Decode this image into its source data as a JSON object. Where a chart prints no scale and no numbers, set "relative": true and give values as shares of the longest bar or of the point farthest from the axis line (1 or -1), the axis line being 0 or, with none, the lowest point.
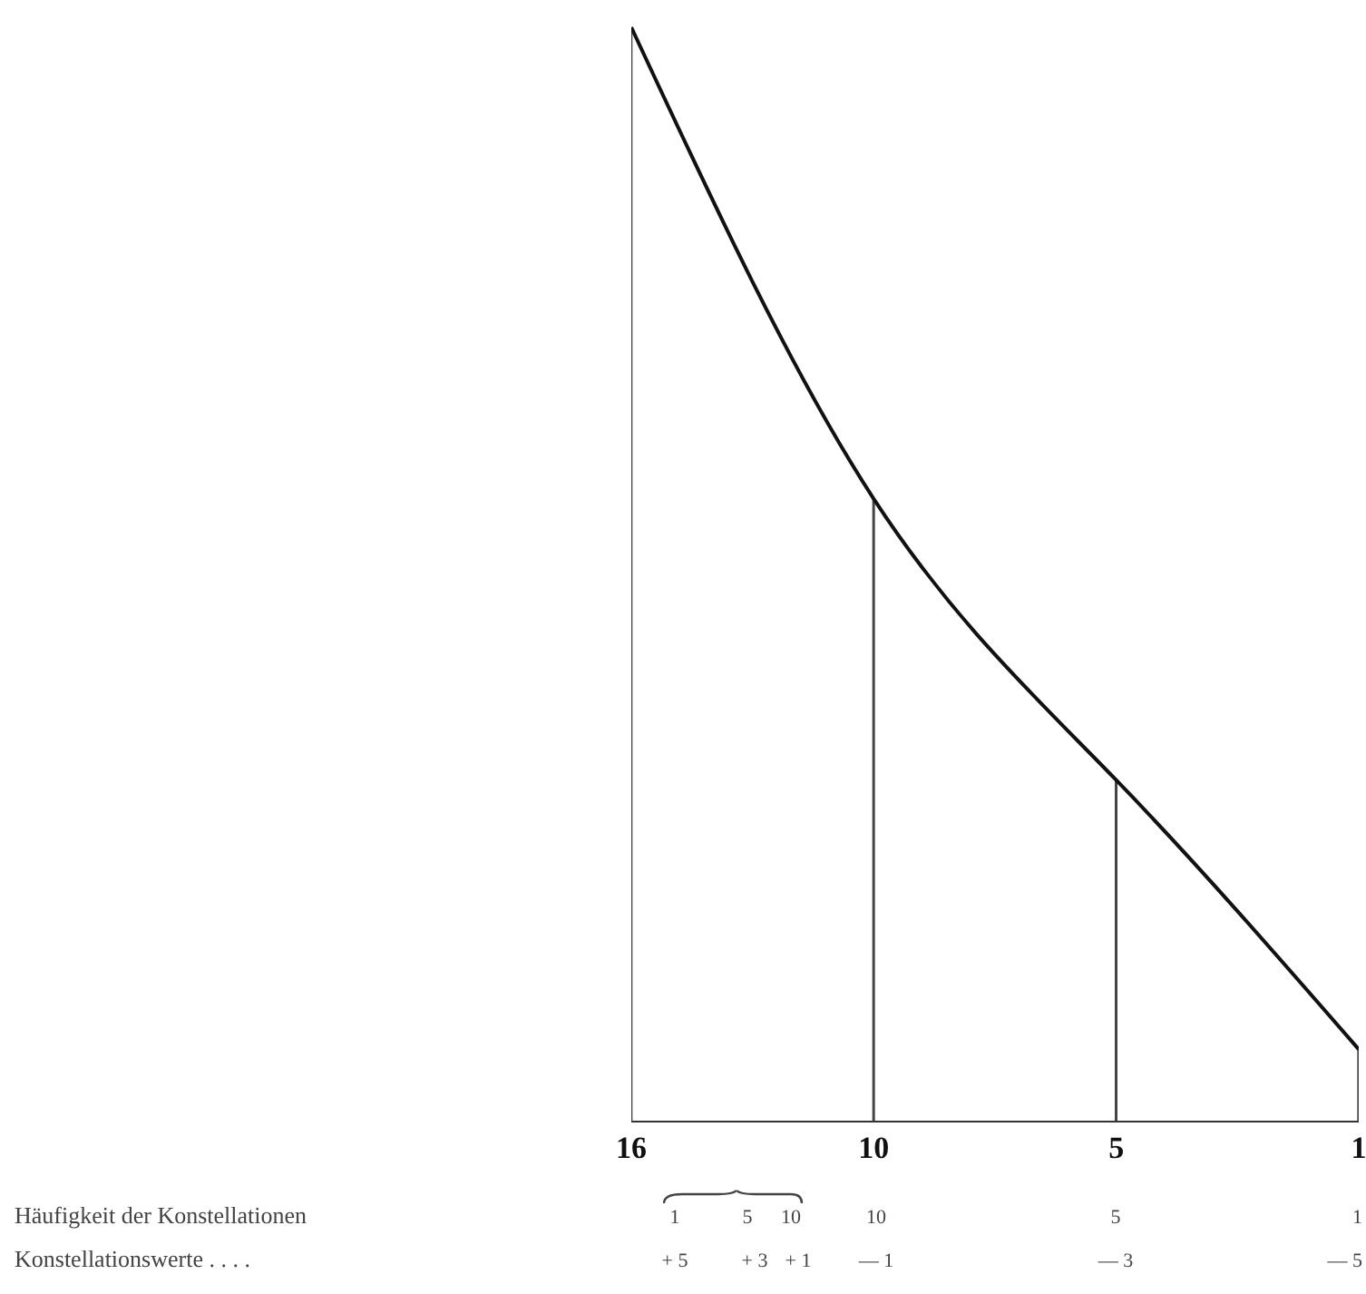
{
  "chart_data": {
    "type": "line",
    "relative": true,
    "categories": [
      "16",
      "10",
      "5",
      "1"
    ],
    "series": [
      {
        "color": "#111111",
        "values": [
          1,
          0.569,
          0.312,
          0.066
        ]
      },
      {
        "type": "bar",
        "color": "#444444",
        "values": [
          1,
          0.569,
          0.312,
          0.066
        ]
      }
    ],
    "marker": "none",
    "annotations": [
      "Häufigkeit der Konstellationen",
      "Konstellationswerte . . . .",
      "1",
      "5",
      "10",
      "10",
      "5",
      "1",
      "+ 5",
      "+ 3",
      "+ 1",
      "— 1",
      "— 3",
      "— 5"
    ]
  }
}
